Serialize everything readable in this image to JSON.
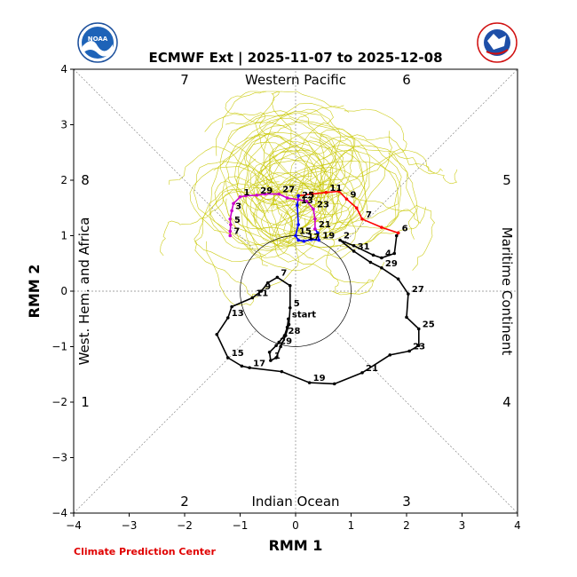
{
  "title": "ECMWF Ext | 2025-11-07 to 2025-12-08",
  "credit": "Climate Prediction Center",
  "logos": {
    "left": "NOAA",
    "right": "NATIONAL WEATHER SERVICE"
  },
  "chart_data": {
    "type": "line",
    "title": "ECMWF Ext | 2025-11-07 to 2025-12-08",
    "xlabel": "RMM 1",
    "ylabel": "RMM 2",
    "xlim": [
      -4,
      4
    ],
    "ylim": [
      -4,
      4
    ],
    "xticks": [
      -4,
      -3,
      -2,
      -1,
      0,
      1,
      2,
      3,
      4
    ],
    "yticks": [
      -4,
      -3,
      -2,
      -1,
      0,
      1,
      2,
      3,
      4
    ],
    "unit_circle_radius": 1,
    "phase_numbers": [
      {
        "label": "1",
        "pos": "left-lower"
      },
      {
        "label": "2",
        "pos": "bottom-left"
      },
      {
        "label": "3",
        "pos": "bottom-right"
      },
      {
        "label": "4",
        "pos": "right-lower"
      },
      {
        "label": "5",
        "pos": "right-upper"
      },
      {
        "label": "6",
        "pos": "top-right"
      },
      {
        "label": "7",
        "pos": "top-left"
      },
      {
        "label": "8",
        "pos": "left-upper"
      }
    ],
    "regions": {
      "top": "Western Pacific",
      "bottom": "Indian Ocean",
      "left": "West. Hem. and Africa",
      "right": "Maritime Continent"
    },
    "start_label": "start",
    "series": [
      {
        "color": "#000000",
        "points": [
          {
            "x": -0.13,
            "y": -0.5,
            "label": "start"
          },
          {
            "x": -0.15,
            "y": -0.65,
            "label": ""
          },
          {
            "x": -0.2,
            "y": -0.8,
            "label": "28"
          },
          {
            "x": -0.3,
            "y": -0.92,
            "label": ""
          },
          {
            "x": -0.35,
            "y": -0.98,
            "label": "29"
          },
          {
            "x": -0.47,
            "y": -1.1,
            "label": ""
          },
          {
            "x": -0.45,
            "y": -1.25,
            "label": "1"
          },
          {
            "x": -0.35,
            "y": -1.2,
            "label": ""
          },
          {
            "x": -0.27,
            "y": -1.0,
            "label": ""
          },
          {
            "x": -0.18,
            "y": -0.8,
            "label": ""
          },
          {
            "x": -0.12,
            "y": -0.6,
            "label": ""
          },
          {
            "x": -0.1,
            "y": -0.3,
            "label": "5"
          },
          {
            "x": -0.1,
            "y": 0.1,
            "label": ""
          },
          {
            "x": -0.33,
            "y": 0.25,
            "label": "7"
          },
          {
            "x": -0.5,
            "y": 0.15,
            "label": ""
          },
          {
            "x": -0.62,
            "y": 0.0,
            "label": "9"
          },
          {
            "x": -0.78,
            "y": -0.12,
            "label": "11"
          },
          {
            "x": -1.15,
            "y": -0.28,
            "label": ""
          },
          {
            "x": -1.22,
            "y": -0.48,
            "label": "13"
          },
          {
            "x": -1.42,
            "y": -0.78,
            "label": ""
          },
          {
            "x": -1.22,
            "y": -1.2,
            "label": "15"
          },
          {
            "x": -0.97,
            "y": -1.35,
            "label": ""
          },
          {
            "x": -0.83,
            "y": -1.38,
            "label": "17"
          },
          {
            "x": -0.25,
            "y": -1.45,
            "label": ""
          },
          {
            "x": 0.25,
            "y": -1.65,
            "label": "19"
          },
          {
            "x": 0.7,
            "y": -1.67,
            "label": ""
          },
          {
            "x": 1.2,
            "y": -1.47,
            "label": "21"
          },
          {
            "x": 1.7,
            "y": -1.15,
            "label": ""
          },
          {
            "x": 2.05,
            "y": -1.08,
            "label": "23"
          },
          {
            "x": 2.22,
            "y": -0.98,
            "label": ""
          },
          {
            "x": 2.22,
            "y": -0.68,
            "label": "25"
          },
          {
            "x": 2.0,
            "y": -0.47,
            "label": ""
          },
          {
            "x": 2.03,
            "y": -0.05,
            "label": "27"
          },
          {
            "x": 1.85,
            "y": 0.22,
            "label": ""
          },
          {
            "x": 1.55,
            "y": 0.42,
            "label": "29"
          },
          {
            "x": 1.35,
            "y": 0.52,
            "label": ""
          },
          {
            "x": 1.05,
            "y": 0.72,
            "label": "31"
          },
          {
            "x": 0.8,
            "y": 0.92,
            "label": "2"
          },
          {
            "x": 1.05,
            "y": 0.82,
            "label": ""
          },
          {
            "x": 1.4,
            "y": 0.65,
            "label": ""
          },
          {
            "x": 1.55,
            "y": 0.6,
            "label": "4"
          },
          {
            "x": 1.78,
            "y": 0.68,
            "label": ""
          },
          {
            "x": 1.82,
            "y": 1.0,
            "label": ""
          },
          {
            "x": 1.85,
            "y": 1.05,
            "label": "6"
          }
        ]
      },
      {
        "color": "#ff0000",
        "points": [
          {
            "x": 1.85,
            "y": 1.05,
            "label": ""
          },
          {
            "x": 1.55,
            "y": 1.15,
            "label": ""
          },
          {
            "x": 1.2,
            "y": 1.3,
            "label": "7"
          },
          {
            "x": 1.1,
            "y": 1.5,
            "label": ""
          },
          {
            "x": 0.92,
            "y": 1.66,
            "label": "9"
          },
          {
            "x": 0.78,
            "y": 1.8,
            "label": ""
          },
          {
            "x": 0.55,
            "y": 1.78,
            "label": "11"
          },
          {
            "x": 0.3,
            "y": 1.75,
            "label": ""
          },
          {
            "x": 0.05,
            "y": 1.72,
            "label": ""
          }
        ]
      },
      {
        "color": "#0000ff",
        "points": [
          {
            "x": 0.05,
            "y": 1.72,
            "label": ""
          },
          {
            "x": 0.03,
            "y": 1.55,
            "label": "13"
          },
          {
            "x": 0.05,
            "y": 1.2,
            "label": ""
          },
          {
            "x": 0.0,
            "y": 1.0,
            "label": "15"
          },
          {
            "x": 0.05,
            "y": 0.92,
            "label": ""
          },
          {
            "x": 0.15,
            "y": 0.9,
            "label": "17"
          },
          {
            "x": 0.28,
            "y": 0.93,
            "label": ""
          },
          {
            "x": 0.42,
            "y": 0.92,
            "label": "19"
          },
          {
            "x": 0.4,
            "y": 1.05,
            "label": ""
          },
          {
            "x": 0.35,
            "y": 1.12,
            "label": ""
          }
        ]
      },
      {
        "color": "#cc00cc",
        "points": [
          {
            "x": 0.35,
            "y": 1.12,
            "label": "21"
          },
          {
            "x": 0.35,
            "y": 1.3,
            "label": ""
          },
          {
            "x": 0.32,
            "y": 1.48,
            "label": "23"
          },
          {
            "x": 0.2,
            "y": 1.62,
            "label": ""
          },
          {
            "x": 0.05,
            "y": 1.65,
            "label": "25"
          },
          {
            "x": -0.15,
            "y": 1.68,
            "label": ""
          },
          {
            "x": -0.3,
            "y": 1.75,
            "label": "27"
          },
          {
            "x": -0.55,
            "y": 1.75,
            "label": ""
          },
          {
            "x": -0.7,
            "y": 1.73,
            "label": "29"
          },
          {
            "x": -0.9,
            "y": 1.72,
            "label": ""
          },
          {
            "x": -1.0,
            "y": 1.7,
            "label": "1"
          },
          {
            "x": -1.12,
            "y": 1.58,
            "label": ""
          },
          {
            "x": -1.15,
            "y": 1.45,
            "label": "3"
          },
          {
            "x": -1.18,
            "y": 1.3,
            "label": ""
          },
          {
            "x": -1.17,
            "y": 1.2,
            "label": "5"
          },
          {
            "x": -1.18,
            "y": 1.08,
            "label": ""
          },
          {
            "x": -1.18,
            "y": 1.0,
            "label": "7"
          }
        ]
      }
    ],
    "ensemble": {
      "color": "#c8c800",
      "center": [
        0.0,
        1.75
      ],
      "spread": [
        1.4,
        0.8
      ]
    }
  }
}
